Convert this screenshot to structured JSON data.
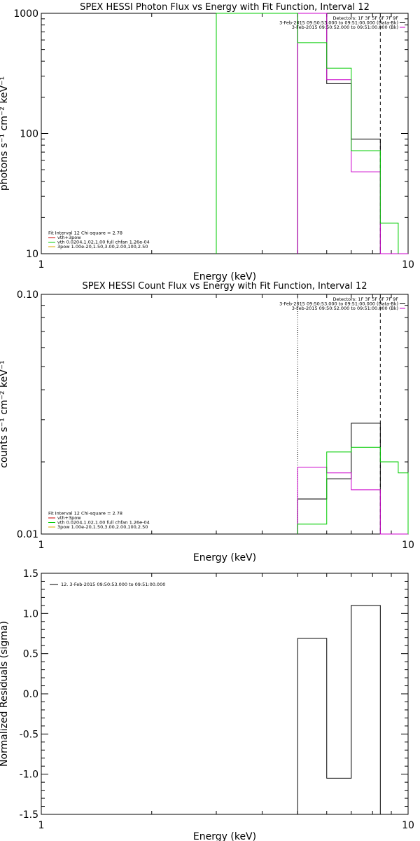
{
  "chart_data": [
    {
      "type": "line",
      "title": "SPEX HESSI Photon Flux vs Energy with Fit Function, Interval 12",
      "xlabel": "Energy (keV)",
      "ylabel": "photons s⁻¹ cm⁻² keV⁻¹",
      "xscale": "log",
      "yscale": "log",
      "xlim": [
        1,
        10
      ],
      "ylim": [
        10,
        1000
      ],
      "xticks": [
        "1",
        "10"
      ],
      "yticks": [
        "10",
        "100",
        "1000"
      ],
      "ytick_values": [
        10,
        100,
        1000
      ],
      "legend_tr": [
        {
          "text": "Detectors: 1F 3F 5F 6F 7F 9F",
          "color": "#000000"
        },
        {
          "text": "3-Feb-2015 09:50:53.000 to 09:51:00.000 (Data-Bk)",
          "color": "#000000"
        },
        {
          "text": "3-Feb-2015 09:50:52.000 to 09:51:00.000 (Bk)",
          "color": "#cc00cc"
        }
      ],
      "legend_bl": [
        {
          "text": "Fit Interval 12    Chi-square = 2.78",
          "color": null
        },
        {
          "text": "vth+3pow",
          "color": "#cc0000"
        },
        {
          "text": "vth 0.0204,1.02,1.00  full chfan 1.26e-04",
          "color": "#00cc00"
        },
        {
          "text": "3pow 1.00e-20,1.50,3.00,2.00,100,2.50",
          "color": "#ddaa00"
        }
      ],
      "dotted_line_x": null,
      "dashed_line_x": 8.4,
      "series": [
        {
          "color": "#000000",
          "bins": [
            [
              5.0,
              6.0,
              1000
            ],
            [
              6.0,
              7.0,
              260
            ],
            [
              7.0,
              8.4,
              90
            ],
            [
              8.4,
              10,
              9
            ]
          ]
        },
        {
          "color": "#cc00cc",
          "bins": [
            [
              5.0,
              6.0,
              1000
            ],
            [
              6.0,
              7.0,
              280
            ],
            [
              7.0,
              8.4,
              48
            ],
            [
              8.4,
              10,
              9
            ]
          ]
        },
        {
          "color": "#00cc00",
          "bins": [
            [
              3.0,
              5.0,
              1000
            ],
            [
              5.0,
              6.0,
              570
            ],
            [
              6.0,
              7.0,
              350
            ],
            [
              7.0,
              8.4,
              72
            ],
            [
              8.4,
              9.4,
              18
            ]
          ]
        }
      ]
    },
    {
      "type": "line",
      "title": "SPEX HESSI Count Flux vs Energy with Fit Function, Interval 12",
      "xlabel": "Energy (keV)",
      "ylabel": "counts s⁻¹ cm⁻² keV⁻¹",
      "xscale": "log",
      "yscale": "log",
      "xlim": [
        1,
        10
      ],
      "ylim": [
        0.01,
        0.1
      ],
      "xticks": [
        "1",
        "10"
      ],
      "yticks": [
        "0.01",
        "0.10"
      ],
      "ytick_values": [
        0.01,
        0.1
      ],
      "legend_tr": [
        {
          "text": "Detectors: 1F 3F 5F 6F 7F 9F",
          "color": "#000000"
        },
        {
          "text": "3-Feb-2015 09:50:53.000 to 09:51:00.000 (Data-Bk)",
          "color": "#000000"
        },
        {
          "text": "3-Feb-2015 09:50:52.000 to 09:51:00.000 (Bk)",
          "color": "#cc00cc"
        }
      ],
      "legend_bl": [
        {
          "text": "Fit Interval 12    Chi-square = 2.78",
          "color": null
        },
        {
          "text": "vth+3pow",
          "color": "#cc0000"
        },
        {
          "text": "vth 0.0204,1.02,1.00  full chfan 1.26e-04",
          "color": "#00cc00"
        },
        {
          "text": "3pow 1.00e-20,1.50,3.00,2.00,100,2.50",
          "color": "#ddaa00"
        }
      ],
      "dotted_line_x": 5.0,
      "dashed_line_x": 8.4,
      "series": [
        {
          "color": "#000000",
          "bins": [
            [
              5.0,
              6.0,
              0.014
            ],
            [
              6.0,
              7.0,
              0.017
            ],
            [
              7.0,
              8.4,
              0.029
            ],
            [
              8.4,
              10,
              0.009
            ]
          ]
        },
        {
          "color": "#cc00cc",
          "bins": [
            [
              5.0,
              6.0,
              0.019
            ],
            [
              6.0,
              7.0,
              0.018
            ],
            [
              7.0,
              8.4,
              0.0153
            ],
            [
              8.4,
              10,
              0.009
            ]
          ]
        },
        {
          "color": "#00cc00",
          "bins": [
            [
              5.0,
              6.0,
              0.011
            ],
            [
              6.0,
              7.0,
              0.022
            ],
            [
              7.0,
              8.4,
              0.023
            ],
            [
              8.4,
              9.4,
              0.02
            ],
            [
              9.4,
              10,
              0.018
            ]
          ]
        }
      ]
    },
    {
      "type": "line",
      "title": "",
      "xlabel": "Energy (keV)",
      "ylabel": "Normalized Residuals (sigma)",
      "xscale": "log",
      "yscale": "linear",
      "xlim": [
        1,
        10
      ],
      "ylim": [
        -1.5,
        1.5
      ],
      "xticks": [
        "1",
        "10"
      ],
      "yticks": [
        "-1.5",
        "-1.0",
        "-0.5",
        "0.0",
        "0.5",
        "1.0",
        "1.5"
      ],
      "ytick_values": [
        -1.5,
        -1.0,
        -0.5,
        0.0,
        0.5,
        1.0,
        1.5
      ],
      "legend_tr": [],
      "legend_bl": [],
      "legend_tl": [
        {
          "text": "12.  3-Feb-2015 09:50:53.000 to 09:51:00.000",
          "color": "#000000"
        }
      ],
      "dotted_line_x": null,
      "dashed_line_x": null,
      "series": [
        {
          "color": "#000000",
          "bins": [
            [
              5.0,
              6.0,
              0.69
            ],
            [
              6.0,
              7.0,
              -1.05
            ],
            [
              7.0,
              8.4,
              1.1
            ]
          ],
          "to_edge": true
        }
      ]
    }
  ]
}
